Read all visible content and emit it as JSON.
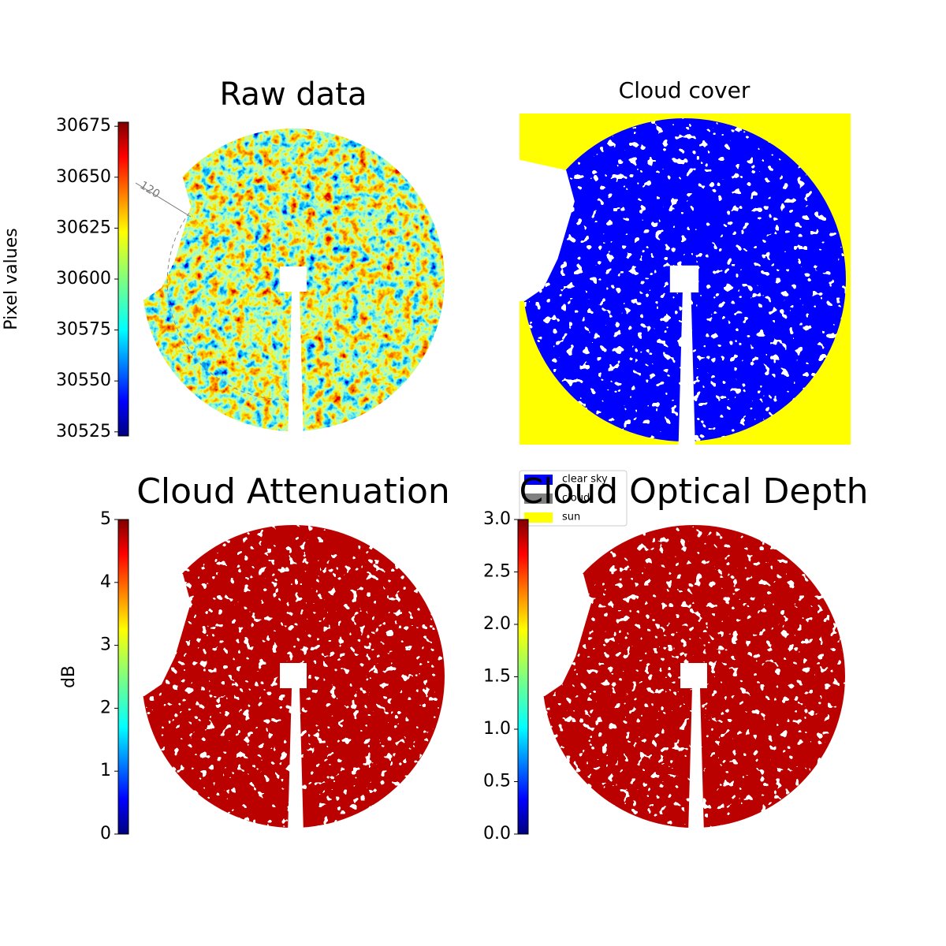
{
  "chart_data": [
    {
      "type": "image",
      "title": "Raw data",
      "colorbar_label": "Pixel values",
      "ylim": [
        30523,
        30677
      ],
      "yticks": [
        30525,
        30550,
        30575,
        30600,
        30625,
        30650,
        30675
      ],
      "annotations": [
        "120"
      ]
    },
    {
      "type": "categorical-image",
      "title": "Cloud cover",
      "categories": [
        "clear sky",
        "cloud",
        "sun"
      ],
      "colors": [
        "#0000ff",
        "#808080",
        "#ffff00"
      ]
    },
    {
      "type": "image",
      "title": "Cloud Attenuation",
      "colorbar_label": "dB",
      "ylim": [
        0,
        5
      ],
      "yticks": [
        0,
        1,
        2,
        3,
        4,
        5
      ]
    },
    {
      "type": "image",
      "title": "Cloud Optical Depth",
      "ylim": [
        0,
        3
      ],
      "yticks": [
        {
          "value": 0,
          "label": "0.0"
        },
        0.5,
        {
          "value": 1,
          "label": "1.0"
        },
        1.5,
        {
          "value": 2,
          "label": "2.0"
        },
        2.5,
        {
          "value": 3,
          "label": "3.0"
        }
      ]
    }
  ]
}
